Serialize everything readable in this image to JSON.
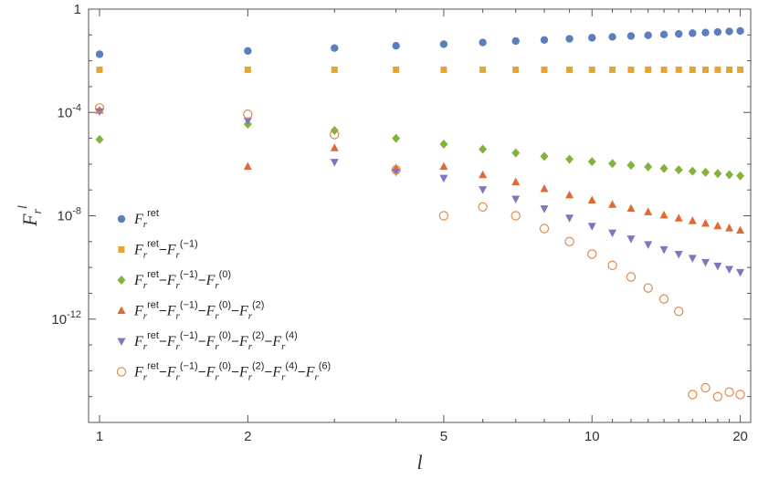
{
  "chart_data": {
    "type": "scatter",
    "title": "",
    "xlabel": "l",
    "ylabel": "F_r^l",
    "x_scale": "log",
    "y_scale": "log",
    "xlim": [
      0.95,
      21
    ],
    "ylim": [
      1e-16,
      1
    ],
    "x_ticks": [
      {
        "value": 1,
        "label": "1"
      },
      {
        "value": 2,
        "label": "2"
      },
      {
        "value": 5,
        "label": "5"
      },
      {
        "value": 10,
        "label": "10"
      },
      {
        "value": 20,
        "label": "20"
      }
    ],
    "y_ticks": [
      {
        "value": 1,
        "label": "1"
      },
      {
        "value": 0.0001,
        "label": "10",
        "exp": "-4"
      },
      {
        "value": 1e-08,
        "label": "10",
        "exp": "-8"
      },
      {
        "value": 1e-12,
        "label": "10",
        "exp": "-12"
      }
    ],
    "grid": false,
    "legend_position": "left",
    "series": [
      {
        "name": "F_r^ret",
        "legend": [
          [
            "F",
            "r",
            "ret"
          ]
        ],
        "marker": "circle",
        "color": "#5b7fbd",
        "x": [
          1,
          2,
          3,
          4,
          5,
          6,
          7,
          8,
          9,
          10,
          11,
          12,
          13,
          14,
          15,
          16,
          17,
          18,
          19,
          20
        ],
        "y": [
          0.018,
          0.024,
          0.031,
          0.038,
          0.044,
          0.051,
          0.058,
          0.064,
          0.071,
          0.078,
          0.084,
          0.091,
          0.097,
          0.104,
          0.11,
          0.117,
          0.124,
          0.13,
          0.137,
          0.143
        ]
      },
      {
        "name": "F_r^ret-F_r^(-1)",
        "legend": [
          [
            "F",
            "r",
            "ret"
          ],
          [
            "F",
            "r",
            "(−1)"
          ]
        ],
        "marker": "square",
        "color": "#e6a52f",
        "x": [
          1,
          2,
          3,
          4,
          5,
          6,
          7,
          8,
          9,
          10,
          11,
          12,
          13,
          14,
          15,
          16,
          17,
          18,
          19,
          20
        ],
        "y": [
          0.0045,
          0.0045,
          0.0045,
          0.0045,
          0.0045,
          0.0045,
          0.0045,
          0.0045,
          0.0045,
          0.0045,
          0.0045,
          0.0045,
          0.0045,
          0.0045,
          0.0045,
          0.0045,
          0.0045,
          0.0045,
          0.0045,
          0.0045
        ]
      },
      {
        "name": "F_r^ret-F_r^(-1)-F_r^(0)",
        "legend": [
          [
            "F",
            "r",
            "ret"
          ],
          [
            "F",
            "r",
            "(−1)"
          ],
          [
            "F",
            "r",
            "(0)"
          ]
        ],
        "marker": "diamond",
        "color": "#82b43b",
        "x": [
          1,
          2,
          3,
          4,
          5,
          6,
          7,
          8,
          9,
          10,
          11,
          12,
          13,
          14,
          15,
          16,
          17,
          18,
          19,
          20
        ],
        "y": [
          9e-06,
          3.5e-05,
          2e-05,
          1e-05,
          5.9e-06,
          3.8e-06,
          2.7e-06,
          2e-06,
          1.55e-06,
          1.25e-06,
          1.05e-06,
          9e-07,
          7.8e-07,
          6.8e-07,
          6e-07,
          5.3e-07,
          4.8e-07,
          4.3e-07,
          3.9e-07,
          3.5e-07
        ]
      },
      {
        "name": "F_r^ret-F_r^(-1)-F_r^(0)-F_r^(2)",
        "legend": [
          [
            "F",
            "r",
            "ret"
          ],
          [
            "F",
            "r",
            "(−1)"
          ],
          [
            "F",
            "r",
            "(0)"
          ],
          [
            "F",
            "r",
            "(2)"
          ]
        ],
        "marker": "triangle-up",
        "color": "#df6a35",
        "x": [
          1,
          2,
          3,
          4,
          5,
          6,
          7,
          8,
          9,
          10,
          11,
          12,
          13,
          14,
          15,
          16,
          17,
          18,
          19,
          20
        ],
        "y": [
          0.00012,
          8e-07,
          4.2e-06,
          7e-07,
          8e-07,
          3.8e-07,
          2e-07,
          1.1e-07,
          6.3e-08,
          4e-08,
          2.7e-08,
          1.9e-08,
          1.4e-08,
          1.05e-08,
          8e-09,
          6.3e-09,
          5e-09,
          4e-09,
          3.3e-09,
          2.7e-09
        ]
      },
      {
        "name": "F_r^ret-F_r^(-1)-F_r^(0)-F_r^(2)-F_r^(4)",
        "legend": [
          [
            "F",
            "r",
            "ret"
          ],
          [
            "F",
            "r",
            "(−1)"
          ],
          [
            "F",
            "r",
            "(0)"
          ],
          [
            "F",
            "r",
            "(2)"
          ],
          [
            "F",
            "r",
            "(4)"
          ]
        ],
        "marker": "triangle-down",
        "color": "#8573bb",
        "x": [
          1,
          2,
          3,
          4,
          5,
          6,
          7,
          8,
          9,
          10,
          11,
          12,
          13,
          14,
          15,
          16,
          17,
          18,
          19,
          20
        ],
        "y": [
          0.00011,
          4.8e-05,
          1.2e-06,
          5e-07,
          2.9e-07,
          1.05e-07,
          4.5e-08,
          1.9e-08,
          8.3e-09,
          4e-09,
          2.2e-09,
          1.3e-09,
          7.8e-10,
          5e-10,
          3.3e-10,
          2.3e-10,
          1.6e-10,
          1.15e-10,
          8.6e-11,
          6.5e-11
        ]
      },
      {
        "name": "F_r^ret-F_r^(-1)-F_r^(0)-F_r^(2)-F_r^(4)-F_r^(6)",
        "legend": [
          [
            "F",
            "r",
            "ret"
          ],
          [
            "F",
            "r",
            "(−1)"
          ],
          [
            "F",
            "r",
            "(0)"
          ],
          [
            "F",
            "r",
            "(2)"
          ],
          [
            "F",
            "r",
            "(4)"
          ],
          [
            "F",
            "r",
            "(6)"
          ]
        ],
        "marker": "circle-open",
        "color": "#df8a4e",
        "x": [
          1,
          2,
          3,
          4,
          5,
          6,
          7,
          8,
          9,
          10,
          11,
          12,
          13,
          14,
          15,
          16,
          17,
          18,
          19,
          20
        ],
        "y": [
          0.00015,
          8.5e-05,
          1.4e-05,
          6e-07,
          1e-08,
          2.2e-08,
          1e-08,
          3.2e-09,
          1e-09,
          3.3e-10,
          1.2e-10,
          4.3e-11,
          1.6e-11,
          6e-12,
          2e-12,
          1.2e-15,
          2.2e-15,
          1e-15,
          1.5e-15,
          1.2e-15
        ]
      }
    ]
  }
}
